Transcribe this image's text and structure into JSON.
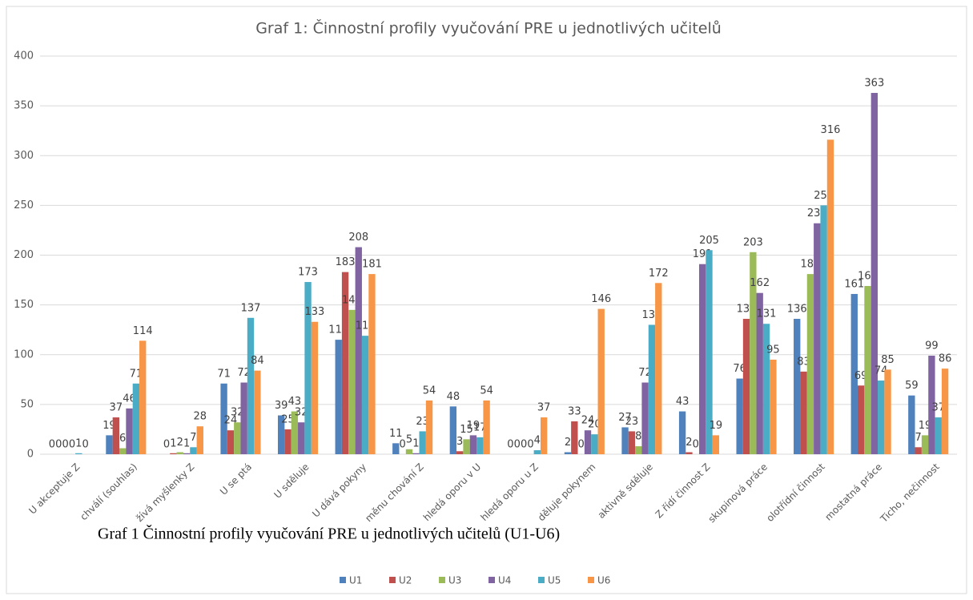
{
  "chart_data": {
    "type": "bar",
    "title": "Graf 1: Činnostní profily vyučování PRE u jednotlivých učitelů",
    "caption": "Graf 1 Činnostní profily vyučování PRE u jednotlivých učitelů (U1-U6)",
    "categories": [
      "U akceptuje Z",
      "chválí (souhlas)",
      "žívá myšlenky Z",
      "U se ptá",
      "U sděluje",
      "U dává pokyny",
      "měnu chování Z",
      "hledá oporu v U",
      "hledá oporu u Z",
      "děluje pokynem",
      "aktivně sděluje",
      "Z řídí činnost Z",
      "skupinová práce",
      "olotřídní činnost",
      "mostatná práce",
      "Ticho, nečinnost"
    ],
    "series": [
      {
        "name": "U1",
        "color": "#4f81bd",
        "values": [
          0,
          19,
          0,
          71,
          39,
          115,
          11,
          48,
          0,
          2,
          27,
          43,
          76,
          136,
          161,
          59
        ]
      },
      {
        "name": "U2",
        "color": "#c0504d",
        "values": [
          0,
          37,
          1,
          24,
          25,
          183,
          0,
          3,
          0,
          33,
          23,
          2,
          136,
          83,
          69,
          7
        ]
      },
      {
        "name": "U3",
        "color": "#9bbb59",
        "values": [
          0,
          6,
          2,
          32,
          43,
          145,
          5,
          15,
          0,
          0,
          8,
          0,
          203,
          181,
          169,
          19
        ]
      },
      {
        "name": "U4",
        "color": "#8064a2",
        "values": [
          0,
          46,
          1,
          72,
          32,
          208,
          1,
          19,
          0,
          24,
          72,
          191,
          162,
          232,
          363,
          99
        ]
      },
      {
        "name": "U5",
        "color": "#4bacc6",
        "values": [
          1,
          71,
          7,
          137,
          173,
          119,
          23,
          17,
          4,
          20,
          130,
          205,
          131,
          250,
          74,
          37
        ]
      },
      {
        "name": "U6",
        "color": "#f79646",
        "values": [
          0,
          114,
          28,
          84,
          133,
          181,
          54,
          54,
          37,
          146,
          172,
          19,
          95,
          316,
          85,
          86
        ]
      }
    ],
    "ylim": [
      0,
      400
    ],
    "yticks": [
      0,
      50,
      100,
      150,
      200,
      250,
      300,
      350,
      400
    ],
    "grid": true,
    "legend": "bottom"
  }
}
